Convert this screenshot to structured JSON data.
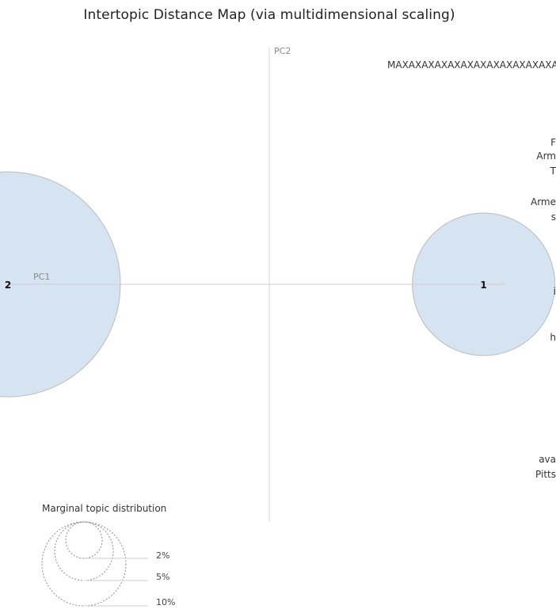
{
  "chart_data": {
    "type": "scatter",
    "title": "Intertopic Distance Map (via multidimensional scaling)",
    "xlabel": "PC1",
    "ylabel": "PC2",
    "grid": false,
    "topics": [
      {
        "label": "2",
        "x": -1.0,
        "y": 0.0
      },
      {
        "label": "1",
        "x": 0.82,
        "y": 0.0
      }
    ],
    "legend": {
      "title": "Marginal topic distribution",
      "entries": [
        "2%",
        "5%",
        "10%"
      ]
    }
  },
  "right_panel": {
    "partial_terms": [
      "MAXAXAXAXAXAXAXAXAXAXAXAXAXAX",
      "F",
      "Arm",
      "T",
      "Arme",
      "s",
      "i",
      "h",
      "ava",
      "Pitts"
    ]
  },
  "colors": {
    "bubble_fill": "#d3e3ef",
    "bubble_stroke": "#bcbcbc",
    "axis_line": "#d6d6d6",
    "legend_circle": "#8c8c8c"
  }
}
